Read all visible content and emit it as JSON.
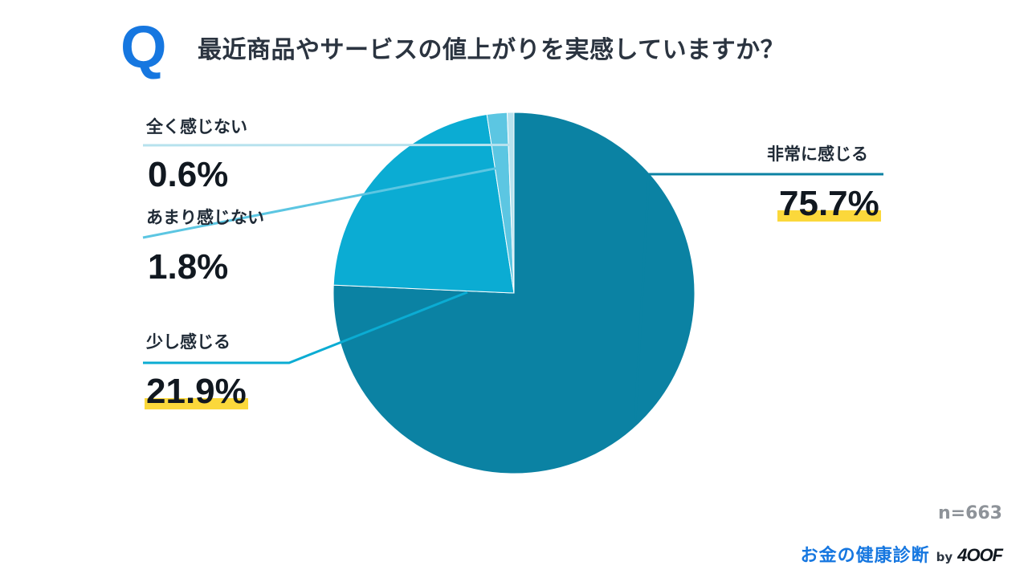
{
  "header": {
    "q_mark": "Q",
    "question": "最近商品やサービスの値上がりを実感していますか？"
  },
  "chart_data": {
    "type": "pie",
    "title": "最近商品やサービスの値上がりを実感していますか？",
    "slices": [
      {
        "label": "非常に感じる",
        "value": 75.7,
        "display": "75.7%",
        "color": "#0b82a3"
      },
      {
        "label": "少し感じる",
        "value": 21.9,
        "display": "21.9%",
        "color": "#0bacd3"
      },
      {
        "label": "あまり感じない",
        "value": 1.8,
        "display": "1.8%",
        "color": "#5cc6e2"
      },
      {
        "label": "全く感じない",
        "value": 0.6,
        "display": "0.6%",
        "color": "#b7e2ee"
      }
    ],
    "highlighted": [
      "非常に感じる",
      "少し感じる"
    ]
  },
  "footer": {
    "sample_size": "n=663",
    "brand": "お金の健康診断",
    "by": "by",
    "company": "4OOF"
  }
}
